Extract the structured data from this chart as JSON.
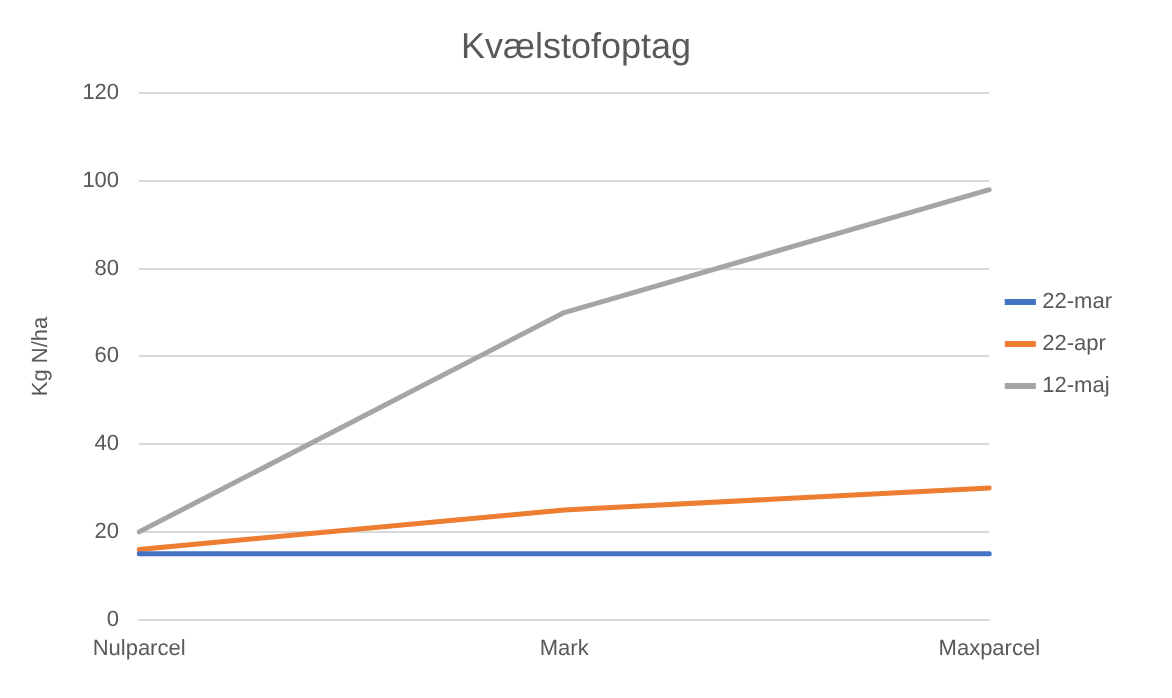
{
  "chart_data": {
    "type": "line",
    "title": "Kvælstofoptag",
    "ylabel": "Kg N/ha",
    "categories": [
      "Nulparcel",
      "Mark",
      "Maxparcel"
    ],
    "series": [
      {
        "name": "22-mar",
        "color": "#4472c4",
        "values": [
          15,
          15,
          15
        ]
      },
      {
        "name": "22-apr",
        "color": "#ed7d31",
        "values": [
          16,
          25,
          30
        ]
      },
      {
        "name": "12-maj",
        "color": "#a5a5a5",
        "values": [
          20,
          70,
          98
        ]
      }
    ],
    "ylim": [
      0,
      120
    ],
    "yticks": [
      0,
      20,
      40,
      60,
      80,
      100,
      120
    ],
    "grid": "y",
    "legend": "right",
    "marker": "none",
    "line_style": "solid"
  }
}
